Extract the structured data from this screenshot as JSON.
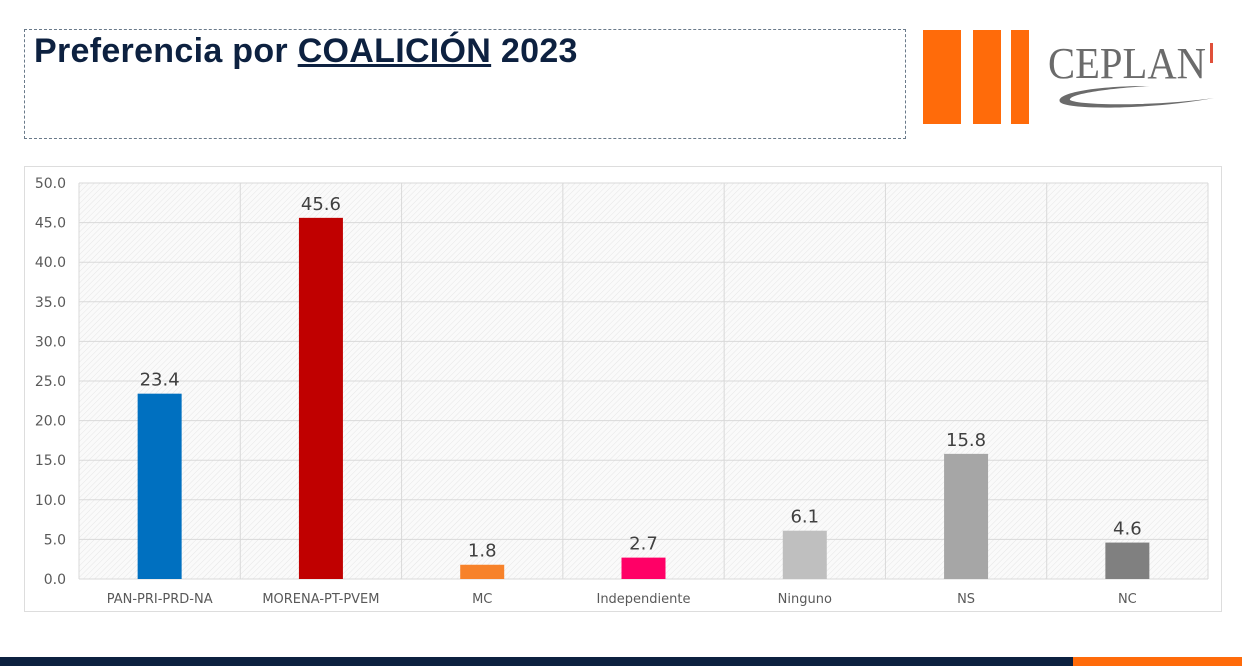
{
  "header": {
    "title_prefix": "Preferencia por ",
    "title_emphasis": "COALICIÓN",
    "title_suffix": " 2023"
  },
  "logo": {
    "text": "CEPLAN",
    "color_bars": "#ff6b0a",
    "color_text": "#6b6b6b"
  },
  "colors": {
    "footer": "#0d2140",
    "footer_accent": "#ff6b0a"
  },
  "chart_data": {
    "type": "bar",
    "categories": [
      "PAN-PRI-PRD-NA",
      "MORENA-PT-PVEM",
      "MC",
      "Independiente",
      "Ninguno",
      "NS",
      "NC"
    ],
    "values": [
      23.4,
      45.6,
      1.8,
      2.7,
      6.1,
      15.8,
      4.6
    ],
    "colors": [
      "#0070c0",
      "#c00000",
      "#f7822a",
      "#ff0066",
      "#bfbfbf",
      "#a6a6a6",
      "#808080"
    ],
    "data_labels": [
      "23.4",
      "45.6",
      "1.8",
      "2.7",
      "6.1",
      "15.8",
      "4.6"
    ],
    "yticks": [
      "0.0",
      "5.0",
      "10.0",
      "15.0",
      "20.0",
      "25.0",
      "30.0",
      "35.0",
      "40.0",
      "45.0",
      "50.0"
    ],
    "ylim": [
      0,
      50
    ],
    "grid": true,
    "title": "",
    "xlabel": "",
    "ylabel": ""
  }
}
